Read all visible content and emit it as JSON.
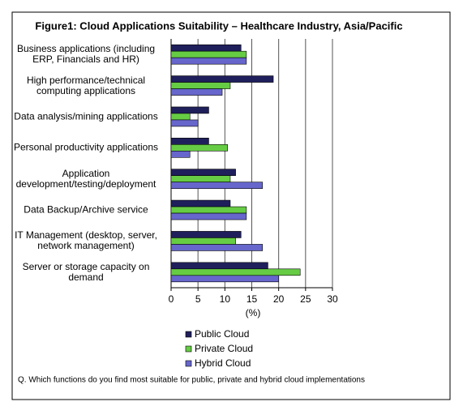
{
  "chart_data": {
    "type": "hbar",
    "title": "Figure1: Cloud Applications Suitability – Healthcare Industry, Asia/Pacific",
    "categories": [
      "Business applications (including\nERP, Financials and HR)",
      "High performance/technical\ncomputing applications",
      "Data analysis/mining applications",
      "Personal productivity applications",
      "Application\ndevelopment/testing/deployment",
      "Data Backup/Archive service",
      "IT Management (desktop, server,\nnetwork management)",
      "Server or storage capacity on\ndemand"
    ],
    "series": [
      {
        "name": "Public Cloud",
        "color": "#1f1f5c",
        "values": [
          13,
          19,
          7,
          7,
          12,
          11,
          13,
          18
        ]
      },
      {
        "name": "Private Cloud",
        "color": "#66cc44",
        "values": [
          14,
          11,
          3.5,
          10.5,
          11,
          14,
          12,
          24
        ]
      },
      {
        "name": "Hybrid Cloud",
        "color": "#6666cc",
        "values": [
          14,
          9.5,
          5,
          3.5,
          17,
          14,
          17,
          20
        ]
      }
    ],
    "xlabel": "(%)",
    "xlim": [
      0,
      30
    ],
    "xticks": [
      0,
      5,
      10,
      15,
      20,
      25,
      30
    ],
    "grid": true,
    "legend": "bottom",
    "footnote": "Q. Which functions do you find most suitable for public, private and hybrid cloud implementations"
  }
}
